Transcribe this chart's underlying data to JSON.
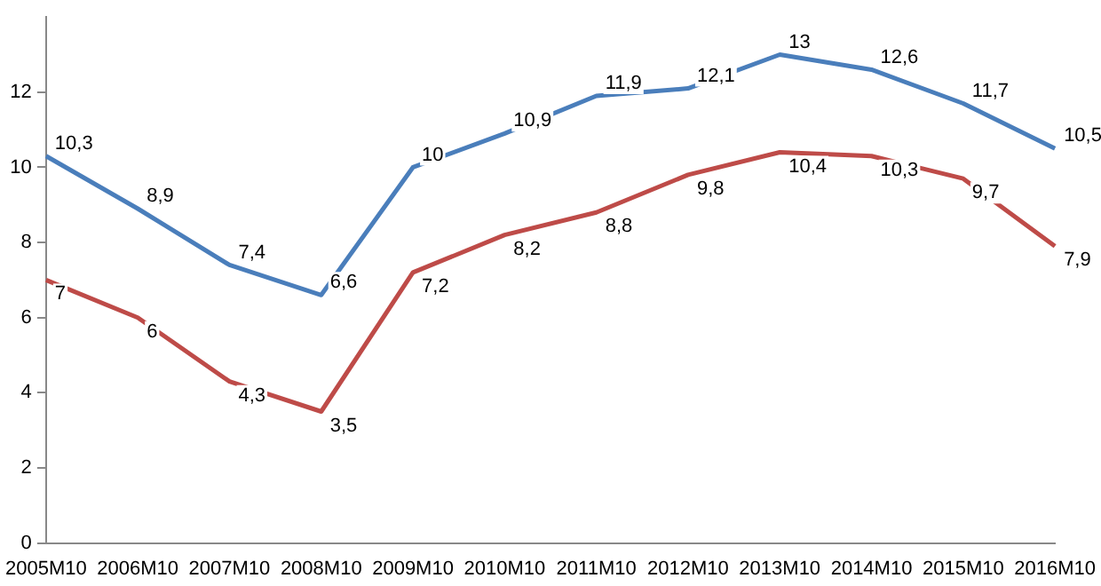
{
  "chart_data": {
    "type": "line",
    "categories": [
      "2005M10",
      "2006M10",
      "2007M10",
      "2008M10",
      "2009M10",
      "2010M10",
      "2011M10",
      "2012M10",
      "2013M10",
      "2014M10",
      "2015M10",
      "2016M10"
    ],
    "series": [
      {
        "color": "#4a7ebb",
        "values": [
          10.3,
          8.9,
          7.4,
          6.6,
          10,
          10.9,
          11.9,
          12.1,
          13,
          12.6,
          11.7,
          10.5
        ],
        "value_labels": [
          "10,3",
          "8,9",
          "7,4",
          "6,6",
          "10",
          "10,9",
          "11,9",
          "12,1",
          "13",
          "12,6",
          "11,7",
          "10,5"
        ]
      },
      {
        "color": "#be4b48",
        "values": [
          7,
          6,
          4.3,
          3.5,
          7.2,
          8.2,
          8.8,
          9.8,
          10.4,
          10.3,
          9.7,
          7.9
        ],
        "value_labels": [
          "7",
          "6",
          "4,3",
          "3,5",
          "7,2",
          "8,2",
          "8,8",
          "9,8",
          "10,4",
          "10,3",
          "9,7",
          "7,9"
        ]
      }
    ],
    "ylim": [
      0,
      14
    ],
    "yticks": [
      0,
      2,
      4,
      6,
      8,
      10,
      12
    ],
    "grid": false,
    "legend": false,
    "marker": "none",
    "line_style": "solid"
  }
}
